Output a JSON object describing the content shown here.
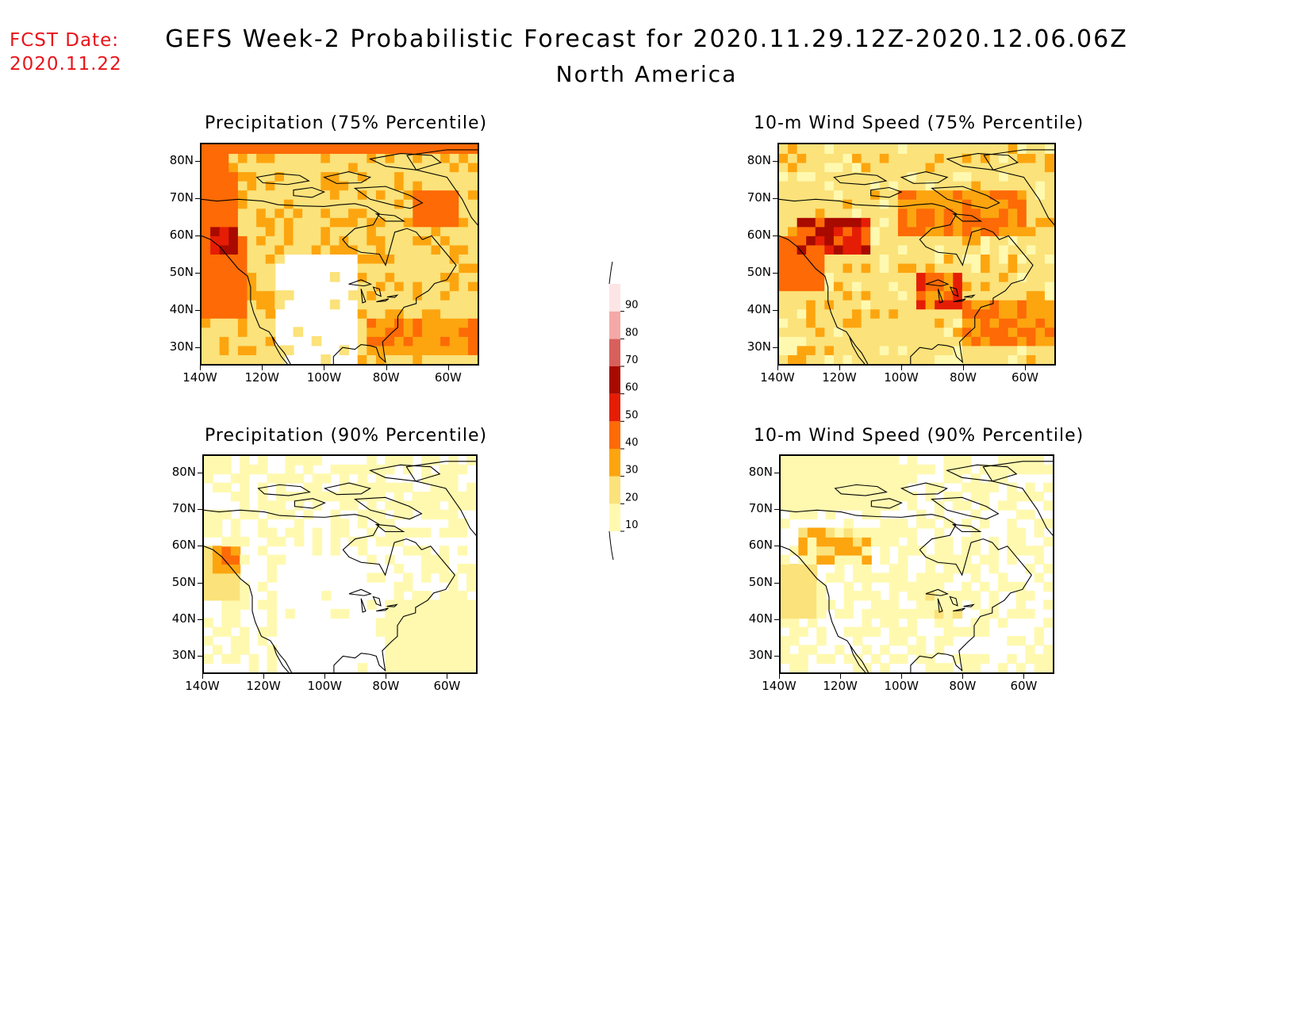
{
  "header": {
    "fcst_label": "FCST Date:",
    "fcst_date": "2020.11.22",
    "title": "GEFS Week-2 Probabilistic Forecast for 2020.11.29.12Z-2020.12.06.06Z",
    "subtitle": "North America",
    "fcst_color": "#e8141a"
  },
  "axes": {
    "lat_labels": [
      "80N",
      "70N",
      "60N",
      "50N",
      "40N",
      "30N"
    ],
    "lon_labels": [
      "140W",
      "120W",
      "100W",
      "80W",
      "60W"
    ],
    "lat_values": [
      80,
      70,
      60,
      50,
      40,
      30
    ],
    "lon_values": [
      -140,
      -120,
      -100,
      -80,
      -60
    ],
    "lat_range": [
      25,
      85
    ],
    "lon_range": [
      -140,
      -50
    ]
  },
  "panels": [
    {
      "id": "precip75",
      "title": "Precipitation (75% Percentile)",
      "variable": "precipitation",
      "percentile": 75
    },
    {
      "id": "wind75",
      "title": "10-m Wind Speed (75% Percentile)",
      "variable": "10-m wind speed",
      "percentile": 75
    },
    {
      "id": "precip90",
      "title": "Precipitation (90% Percentile)",
      "variable": "precipitation",
      "percentile": 90
    },
    {
      "id": "wind90",
      "title": "10-m Wind Speed (90% Percentile)",
      "variable": "10-m wind speed",
      "percentile": 90
    }
  ],
  "colorbar": {
    "levels": [
      "10",
      "20",
      "30",
      "40",
      "50",
      "60",
      "70",
      "80",
      "90"
    ],
    "colors": [
      "#fff9b0",
      "#fbe27a",
      "#fda50f",
      "#fd6a06",
      "#e51d05",
      "#a80a00",
      "#d8605c",
      "#f4a9a7",
      "#fde5e5"
    ]
  }
}
